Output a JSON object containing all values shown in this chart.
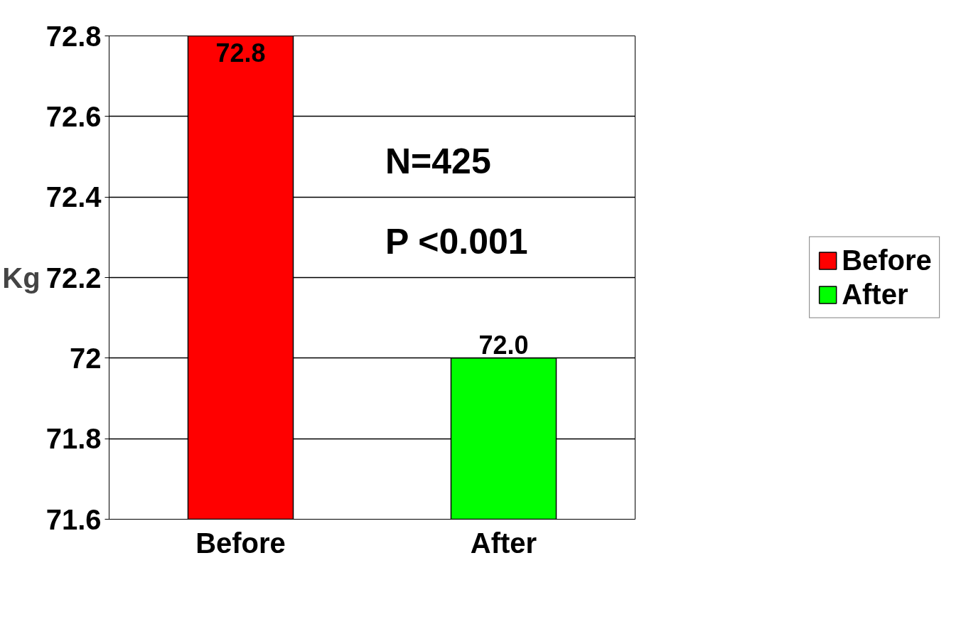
{
  "chart_data": {
    "type": "bar",
    "ylabel": "Kg",
    "categories": [
      "Before",
      "After"
    ],
    "series": [
      {
        "name": "Before",
        "color": "#ff0000",
        "values": [
          72.8,
          null
        ],
        "value_labels": [
          "72.8",
          null
        ]
      },
      {
        "name": "After",
        "color": "#00ff00",
        "values": [
          null,
          72.0
        ],
        "value_labels": [
          null,
          "72.0"
        ]
      }
    ],
    "ylim": [
      71.6,
      72.8
    ],
    "yticks": [
      71.6,
      71.8,
      72,
      72.2,
      72.4,
      72.6,
      72.8
    ],
    "grid": "y",
    "legend": "right",
    "annotations": [
      "N=425",
      "P <0.001"
    ]
  }
}
